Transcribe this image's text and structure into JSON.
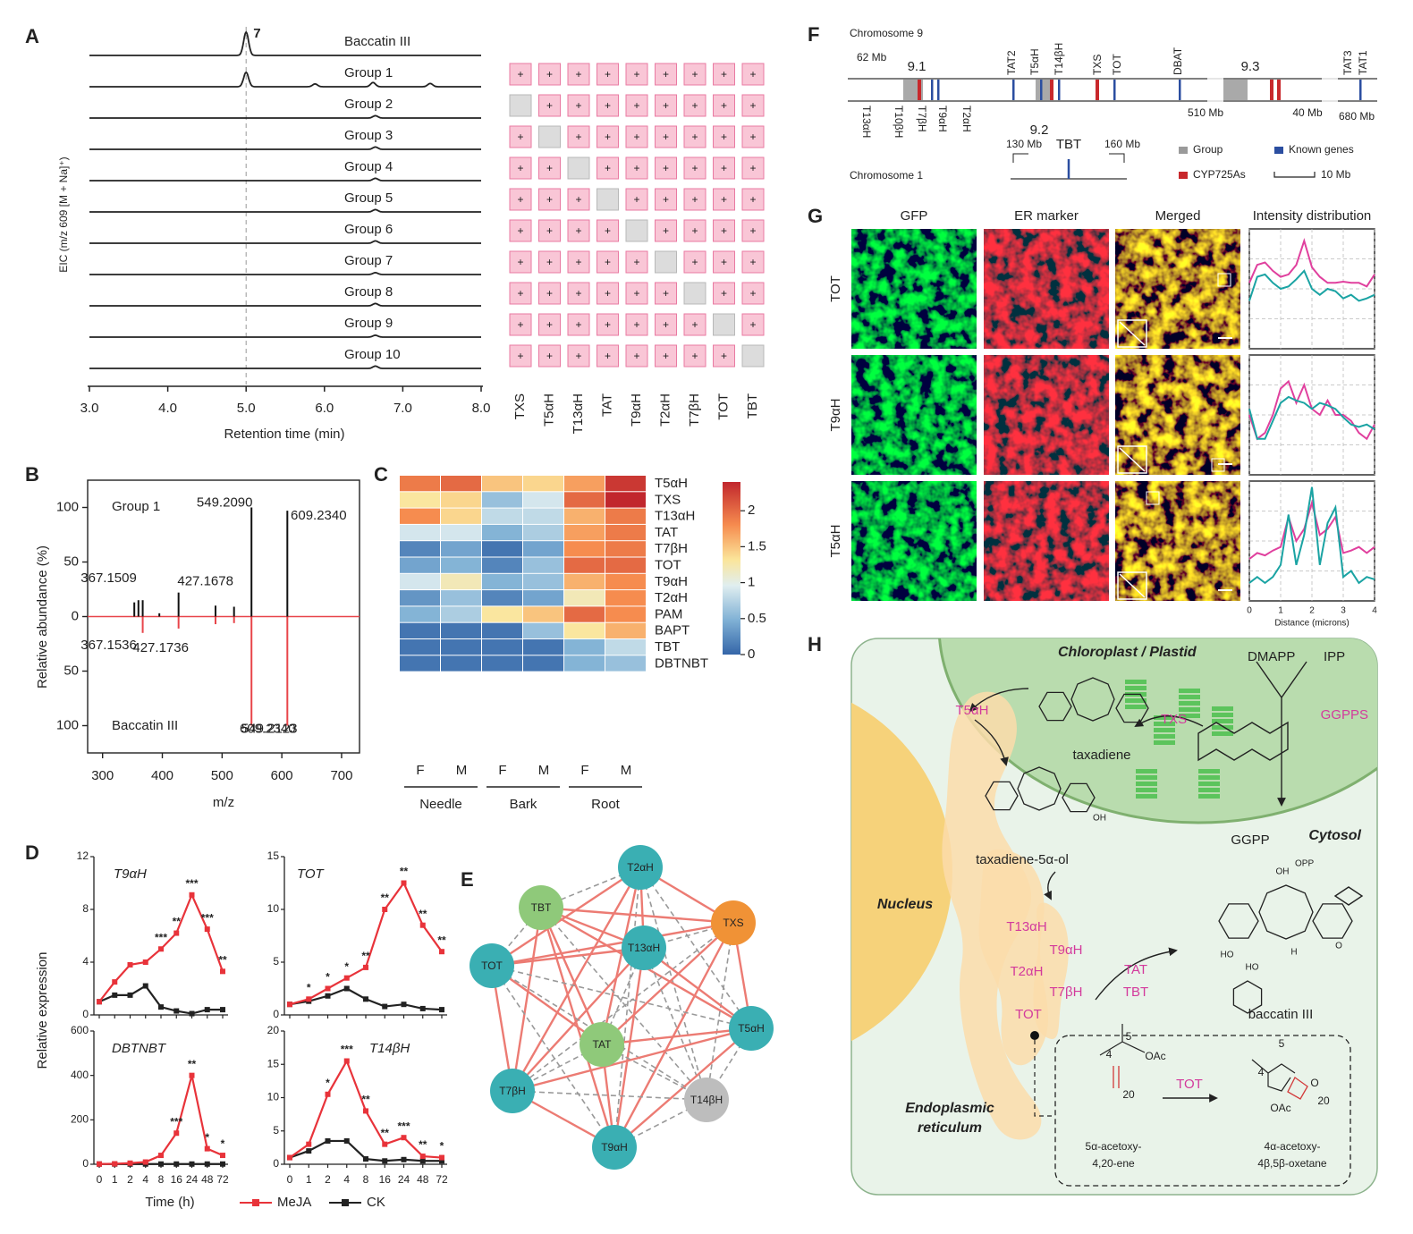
{
  "panel_a": {
    "letter": "A",
    "y_label": "EIC (m/z 609 [M + Na]⁺)",
    "x_label": "Retention time (min)",
    "peak_label": "7",
    "xlim": [
      3,
      8
    ],
    "xticks": [
      {
        "value": 3,
        "label": "3.0"
      },
      {
        "value": 4,
        "label": "4.0"
      },
      {
        "value": 5,
        "label": "5.0"
      },
      {
        "value": 6,
        "label": "6.0"
      },
      {
        "value": 7,
        "label": "7.0"
      },
      {
        "value": 8,
        "label": "8.0"
      }
    ],
    "traces": [
      {
        "name": "Baccatin III",
        "peaks": [
          [
            5.0,
            1.0
          ]
        ]
      },
      {
        "name": "Group 1",
        "peaks": [
          [
            5.0,
            0.62
          ],
          [
            5.88,
            0.12
          ],
          [
            6.62,
            0.18
          ],
          [
            7.35,
            0.14
          ]
        ]
      },
      {
        "name": "Group 2",
        "peaks": [
          [
            6.65,
            0.1
          ]
        ]
      },
      {
        "name": "Group 3",
        "peaks": [
          [
            6.65,
            0.1
          ]
        ]
      },
      {
        "name": "Group 4",
        "peaks": [
          [
            6.65,
            0.1
          ]
        ]
      },
      {
        "name": "Group 5",
        "peaks": [
          [
            6.65,
            0.1
          ]
        ]
      },
      {
        "name": "Group 6",
        "peaks": [
          [
            6.65,
            0.1
          ]
        ]
      },
      {
        "name": "Group 7",
        "peaks": [
          [
            6.65,
            0.08
          ]
        ]
      },
      {
        "name": "Group 8",
        "peaks": [
          [
            6.65,
            0.1
          ]
        ]
      },
      {
        "name": "Group 9",
        "peaks": [
          [
            6.65,
            0.08
          ]
        ]
      },
      {
        "name": "Group 10",
        "peaks": [
          [
            6.65,
            0.1
          ]
        ]
      }
    ],
    "genes": [
      "TXS",
      "T5αH",
      "T13αH",
      "TAT",
      "T9αH",
      "T2αH",
      "T7βH",
      "TOT",
      "TBT"
    ],
    "cells": [
      [
        "+",
        "+",
        "+",
        "+",
        "+",
        "+",
        "+",
        "+",
        "+"
      ],
      [
        null,
        "+",
        "+",
        "+",
        "+",
        "+",
        "+",
        "+",
        "+"
      ],
      [
        "+",
        null,
        "+",
        "+",
        "+",
        "+",
        "+",
        "+",
        "+"
      ],
      [
        "+",
        "+",
        null,
        "+",
        "+",
        "+",
        "+",
        "+",
        "+"
      ],
      [
        "+",
        "+",
        "+",
        null,
        "+",
        "+",
        "+",
        "+",
        "+"
      ],
      [
        "+",
        "+",
        "+",
        "+",
        null,
        "+",
        "+",
        "+",
        "+"
      ],
      [
        "+",
        "+",
        "+",
        "+",
        "+",
        null,
        "+",
        "+",
        "+"
      ],
      [
        "+",
        "+",
        "+",
        "+",
        "+",
        "+",
        null,
        "+",
        "+"
      ],
      [
        "+",
        "+",
        "+",
        "+",
        "+",
        "+",
        "+",
        null,
        "+"
      ],
      [
        "+",
        "+",
        "+",
        "+",
        "+",
        "+",
        "+",
        "+",
        null
      ]
    ]
  },
  "panel_b": {
    "letter": "B",
    "y_label": "Relative abundance (%)",
    "x_label": "m/z",
    "xlim": [
      275,
      730
    ],
    "xticks": [
      300,
      400,
      500,
      600,
      700
    ],
    "ylim": [
      -125,
      125
    ],
    "yticks": [
      {
        "value": -100,
        "label": "100"
      },
      {
        "value": -50,
        "label": "50"
      },
      0,
      50,
      100
    ],
    "spectra": [
      {
        "name": "Group 1",
        "color": "#111111",
        "mz": [
          353.1,
          360.0,
          367.1509,
          395.0,
          427.1678,
          489.0,
          520.0,
          549.209,
          609.234
        ],
        "values": [
          13,
          15,
          15,
          3,
          22,
          10,
          9,
          100,
          97
        ],
        "mz_labels": [
          null,
          null,
          "367.1509",
          null,
          "427.1678",
          null,
          null,
          "549.2090",
          "609.2340"
        ]
      },
      {
        "name": "Baccatin III",
        "color": "#e8454a",
        "mz": [
          367.1536,
          427.1736,
          489.0,
          520.0,
          549.2123,
          609.234
        ],
        "values": [
          -15,
          -11,
          -7,
          -6,
          -100,
          -100
        ],
        "mz_labels": [
          "367.1536",
          "427.1736",
          null,
          null,
          "549.2123",
          "609.2340"
        ]
      }
    ]
  },
  "panel_c": {
    "letter": "C",
    "rows": [
      "T5αH",
      "TXS",
      "T13αH",
      "TAT",
      "T7βH",
      "TOT",
      "T9αH",
      "T2αH",
      "PAM",
      "BAPT",
      "TBT",
      "DBTNBT"
    ],
    "columns": [
      "F",
      "M",
      "F",
      "M",
      "F",
      "M"
    ],
    "tissues": [
      "Needle",
      "Bark",
      "Root"
    ],
    "values": [
      [
        1.9,
        2.0,
        1.5,
        1.4,
        1.7,
        2.3
      ],
      [
        1.3,
        1.4,
        0.6,
        0.9,
        2.0,
        2.4
      ],
      [
        1.8,
        1.4,
        0.8,
        0.8,
        1.6,
        1.9
      ],
      [
        0.9,
        0.9,
        0.5,
        0.7,
        1.7,
        1.9
      ],
      [
        0.2,
        0.4,
        0.1,
        0.4,
        1.8,
        1.9
      ],
      [
        0.4,
        0.5,
        0.2,
        0.6,
        2.0,
        2.0
      ],
      [
        0.9,
        1.2,
        0.5,
        0.6,
        1.6,
        1.8
      ],
      [
        0.3,
        0.6,
        0.2,
        0.4,
        1.2,
        1.8
      ],
      [
        0.5,
        0.7,
        1.3,
        1.5,
        2.0,
        1.8
      ],
      [
        0.1,
        0.1,
        0.1,
        0.6,
        1.3,
        1.6
      ],
      [
        0.1,
        0.1,
        0.1,
        0.1,
        0.5,
        0.8
      ],
      [
        0.1,
        0.1,
        0.1,
        0.1,
        0.5,
        0.6
      ]
    ],
    "clim": [
      0,
      2.4
    ],
    "cticks": [
      0,
      0.5,
      1,
      1.5,
      2
    ]
  },
  "panel_d": {
    "letter": "D",
    "y_label": "Relative expression",
    "x_label": "Time (h)",
    "categories": [
      "0",
      "1",
      "2",
      "4",
      "8",
      "16",
      "24",
      "48",
      "72"
    ],
    "series": [
      {
        "name": "MeJA",
        "color": "#e8333a"
      },
      {
        "name": "CK",
        "color": "#222222"
      }
    ],
    "plots": [
      {
        "gene": "T9αH",
        "ylim": [
          0,
          12
        ],
        "yticks": [
          0,
          4,
          8,
          12
        ],
        "values": [
          [
            1,
            2.5,
            3.8,
            4,
            5,
            6.2,
            9.1,
            6.5,
            3.3
          ],
          [
            1,
            1.5,
            1.5,
            2.2,
            0.6,
            0.3,
            0.1,
            0.4,
            0.4
          ]
        ],
        "stars": [
          null,
          null,
          null,
          null,
          "***",
          "**",
          "***",
          "***",
          "**"
        ]
      },
      {
        "gene": "TOT",
        "ylim": [
          0,
          15
        ],
        "yticks": [
          0,
          5,
          10,
          15
        ],
        "values": [
          [
            1,
            1.5,
            2.5,
            3.5,
            4.5,
            10,
            12.5,
            8.5,
            6
          ],
          [
            1,
            1.3,
            1.8,
            2.5,
            1.5,
            0.8,
            1.0,
            0.6,
            0.5
          ]
        ],
        "stars": [
          null,
          "*",
          "*",
          "*",
          "**",
          "**",
          "**",
          "**",
          "**"
        ]
      },
      {
        "gene": "DBTNBT",
        "ylim": [
          0,
          600
        ],
        "yticks": [
          0,
          200,
          400,
          600
        ],
        "values": [
          [
            1,
            2,
            5,
            10,
            40,
            140,
            400,
            70,
            40
          ],
          [
            1,
            1,
            1,
            1,
            1,
            1,
            1,
            1,
            1
          ]
        ],
        "stars": [
          null,
          null,
          null,
          null,
          null,
          "***",
          "**",
          "*",
          "*"
        ]
      },
      {
        "gene": "T14βH",
        "ylim": [
          0,
          20
        ],
        "yticks": [
          0,
          5,
          10,
          15,
          20
        ],
        "values": [
          [
            1,
            3,
            10.5,
            15.5,
            8,
            3,
            4,
            1.2,
            1
          ],
          [
            1,
            2,
            3.5,
            3.5,
            0.8,
            0.5,
            0.7,
            0.5,
            0.5
          ]
        ],
        "stars": [
          null,
          null,
          "*",
          "***",
          "**",
          "**",
          "***",
          "**",
          "*"
        ]
      }
    ]
  },
  "panel_e": {
    "letter": "E",
    "nodes": [
      {
        "label": "T2αH",
        "color": "#3aafb3"
      },
      {
        "label": "TBT",
        "color": "#8fc97a"
      },
      {
        "label": "TXS",
        "color": "#f09236"
      },
      {
        "label": "T13αH",
        "color": "#3aafb3"
      },
      {
        "label": "TOT",
        "color": "#3aafb3"
      },
      {
        "label": "T5αH",
        "color": "#3aafb3"
      },
      {
        "label": "TAT",
        "color": "#8fc97a"
      },
      {
        "label": "T7βH",
        "color": "#3aafb3"
      },
      {
        "label": "T14βH",
        "color": "#bdbdbd"
      },
      {
        "label": "T9αH",
        "color": "#3aafb3"
      }
    ]
  },
  "panel_f": {
    "letter": "F",
    "chromosome_9": "Chromosome 9",
    "chromosome_1": "Chromosome 1",
    "chr9_labels": [
      "62 Mb",
      "9.1",
      "9.2",
      "9.3",
      "510 Mb",
      "40 Mb",
      "680 Mb"
    ],
    "genes_top": [
      {
        "name": "TAT2",
        "color": "#333333"
      },
      {
        "name": "T5αH",
        "color": "#333333"
      },
      {
        "name": "T14βH",
        "color": "#333333"
      },
      {
        "name": "TXS",
        "color": "#333333"
      },
      {
        "name": "TOT",
        "color": "#d33a9c"
      },
      {
        "name": "DBAT",
        "color": "#333333"
      },
      {
        "name": "TAT3",
        "color": "#333333"
      },
      {
        "name": "TAT1",
        "color": "#333333"
      }
    ],
    "genes_bottom": [
      {
        "name": "T13αH",
        "color": "#333333"
      },
      {
        "name": "T10βH",
        "color": "#333333"
      },
      {
        "name": "T7βH",
        "color": "#333333"
      },
      {
        "name": "T9αH",
        "color": "#d33a9c"
      },
      {
        "name": "T2αH",
        "color": "#333333"
      }
    ],
    "chr1_labels": [
      "130 Mb",
      "TBT",
      "160 Mb"
    ],
    "legend": [
      {
        "name": "Group",
        "color": "#9a9a9a"
      },
      {
        "name": "Known genes",
        "color": "#2b4ea0"
      },
      {
        "name": "CYP725As",
        "color": "#c8282c"
      },
      {
        "name": "10 Mb",
        "color": "#333333"
      }
    ]
  },
  "panel_g": {
    "letter": "G",
    "columns": [
      "GFP",
      "ER marker",
      "Merged",
      "Intensity distribution"
    ],
    "rows": [
      "TOT",
      "T9αH",
      "T5αH"
    ],
    "x_label": "Distance (microns)",
    "xlim": [
      0,
      4
    ],
    "xticks": [
      0,
      1,
      2,
      3,
      4
    ],
    "ylim": [
      0,
      1
    ],
    "x": [
      0,
      0.25,
      0.5,
      0.75,
      1,
      1.25,
      1.5,
      1.75,
      2,
      2.25,
      2.5,
      2.75,
      3,
      3.25,
      3.5,
      3.75,
      4
    ],
    "profiles": [
      [
        {
          "color": "#e0409e",
          "values": [
            0.55,
            0.7,
            0.72,
            0.65,
            0.6,
            0.62,
            0.7,
            0.9,
            0.68,
            0.6,
            0.55,
            0.55,
            0.56,
            0.55,
            0.55,
            0.52,
            0.62
          ]
        },
        {
          "color": "#1aa3a3",
          "values": [
            0.4,
            0.6,
            0.62,
            0.55,
            0.5,
            0.52,
            0.58,
            0.65,
            0.5,
            0.45,
            0.5,
            0.48,
            0.42,
            0.45,
            0.4,
            0.42,
            0.45
          ]
        }
      ],
      [
        {
          "color": "#e0409e",
          "values": [
            0.5,
            0.3,
            0.35,
            0.5,
            0.72,
            0.78,
            0.6,
            0.75,
            0.55,
            0.5,
            0.62,
            0.5,
            0.5,
            0.45,
            0.35,
            0.3,
            0.42
          ]
        },
        {
          "color": "#1aa3a3",
          "values": [
            0.55,
            0.3,
            0.3,
            0.45,
            0.6,
            0.65,
            0.62,
            0.6,
            0.55,
            0.6,
            0.58,
            0.55,
            0.48,
            0.42,
            0.4,
            0.42,
            0.38
          ]
        }
      ],
      [
        {
          "color": "#e0409e",
          "values": [
            0.35,
            0.4,
            0.38,
            0.42,
            0.45,
            0.7,
            0.5,
            0.6,
            0.82,
            0.55,
            0.6,
            0.7,
            0.4,
            0.42,
            0.45,
            0.4,
            0.45
          ]
        },
        {
          "color": "#1aa3a3",
          "values": [
            0.15,
            0.2,
            0.15,
            0.2,
            0.3,
            0.72,
            0.3,
            0.55,
            0.95,
            0.3,
            0.65,
            0.78,
            0.2,
            0.25,
            0.15,
            0.2,
            0.18
          ]
        }
      ]
    ]
  },
  "panel_h": {
    "letter": "H",
    "chloroplast": "Chloroplast / Plastid",
    "dmapp": "DMAPP",
    "ipp": "IPP",
    "txs": "TXS",
    "ggpps": "GGPPS",
    "taxadiene": "taxadiene",
    "ggpp": "GGPP",
    "opp": "OPP",
    "t5ah": "T5αH",
    "taxadienol": "taxadiene-5α-ol",
    "oh": "OH",
    "cytosol": "Cytosol",
    "nucleus": "Nucleus",
    "er_enzymes": [
      "T13αH",
      "T9αH",
      "T2αH",
      "T7βH",
      "TOT"
    ],
    "acyl": [
      "TAT",
      "TBT"
    ],
    "baccatin": "baccatin III",
    "baccatin_atoms": [
      "OH",
      "HO",
      "HO",
      "O",
      "H"
    ],
    "er": [
      "Endoplasmic",
      "reticulum"
    ],
    "substrate": [
      "5α-acetoxy-",
      "4,20-ene"
    ],
    "product": [
      "4α-acetoxy-",
      "4β,5β-oxetane"
    ],
    "inset_enzyme": "TOT",
    "substrate_atoms": [
      "4",
      "5",
      "20",
      "OAc"
    ],
    "product_atoms": [
      "4",
      "5",
      "20",
      "O",
      "OAc"
    ]
  }
}
